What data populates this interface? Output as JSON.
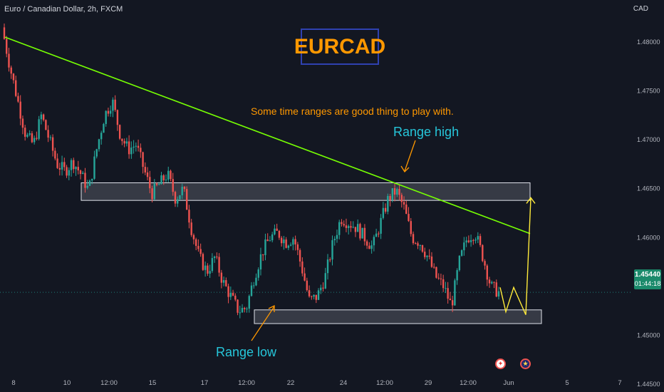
{
  "header": {
    "symbol": "Euro / Canadian Dollar, 2h, FXCM",
    "currency": "CAD"
  },
  "annotations": {
    "title": "EURCAD",
    "note": "Some time ranges are good thing to play with.",
    "range_high": "Range high",
    "range_low": "Range low"
  },
  "price_badge": {
    "price": "1.45440",
    "countdown": "01:44:18"
  },
  "events": [
    {
      "icon": "canada-flag-icon",
      "x": "Jun 1"
    },
    {
      "icon": "eu-flag-icon",
      "x": "Jun 1"
    }
  ],
  "colors": {
    "background": "#131722",
    "up_candle": "#26a69a",
    "down_candle": "#ef5350",
    "trendline": "#76ff03",
    "projection": "#ffeb3b",
    "accent": "#ff9800",
    "label": "#26c6da"
  },
  "chart_data": {
    "type": "candlestick",
    "title": "EURCAD",
    "x_ticks": [
      "8",
      "10",
      "12:00",
      "15",
      "17",
      "12:00",
      "22",
      "24",
      "12:00",
      "29",
      "12:00",
      "Jun",
      "5",
      "7"
    ],
    "y_ticks": [
      "1.48000",
      "1.47500",
      "1.47000",
      "1.46500",
      "1.46000",
      "1.45500",
      "1.45000",
      "1.44500"
    ],
    "ylim": [
      1.4442,
      1.4843
    ],
    "current_price": 1.4544,
    "zones": [
      {
        "name": "Range high",
        "low": 1.4638,
        "high": 1.4656
      },
      {
        "name": "Range low",
        "low": 1.4512,
        "high": 1.4526
      }
    ],
    "trendline": {
      "from": 1.4805,
      "to": 1.4604
    },
    "price_path": [
      1.4815,
      1.4775,
      1.474,
      1.4705,
      1.4695,
      1.4725,
      1.47,
      1.4675,
      1.4668,
      1.4678,
      1.4665,
      1.4648,
      1.469,
      1.4725,
      1.474,
      1.4705,
      1.469,
      1.4695,
      1.467,
      1.4645,
      1.4655,
      1.4665,
      1.464,
      1.465,
      1.461,
      1.458,
      1.4565,
      1.458,
      1.4555,
      1.454,
      1.4525,
      1.4528,
      1.456,
      1.4585,
      1.46,
      1.4605,
      1.4595,
      1.46,
      1.457,
      1.4535,
      1.454,
      1.456,
      1.4595,
      1.462,
      1.4615,
      1.461,
      1.46,
      1.459,
      1.4615,
      1.464,
      1.4648,
      1.463,
      1.46,
      1.4595,
      1.458,
      1.456,
      1.455,
      1.453,
      1.4575,
      1.46,
      1.4605,
      1.458,
      1.455,
      1.4544
    ],
    "projection": [
      1.4549,
      1.4524,
      1.4549,
      1.4521,
      1.464
    ]
  }
}
